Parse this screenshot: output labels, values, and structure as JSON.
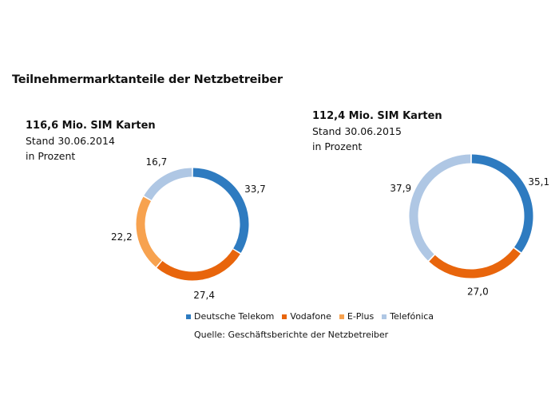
{
  "chart_data": {
    "type": "pie",
    "title": "Teilnehmermarktanteile der Netzbetreiber",
    "legend": [
      {
        "name": "Deutsche Telekom",
        "color": "#2E7BC0"
      },
      {
        "name": "Vodafone",
        "color": "#E8650C"
      },
      {
        "name": "E-Plus",
        "color": "#F7A24F"
      },
      {
        "name": "Telefónica",
        "color": "#AFC7E4"
      }
    ],
    "legend_position": "bottom",
    "source": "Quelle: Geschäftsberichte der Netzbetreiber",
    "charts": [
      {
        "heading": "116,6 Mio. SIM Karten",
        "stand": "Stand 30.06.2014",
        "unit": "in Prozent",
        "slices": [
          {
            "name": "Deutsche Telekom",
            "value": 33.7,
            "label": "33,7"
          },
          {
            "name": "Vodafone",
            "value": 27.4,
            "label": "27,4"
          },
          {
            "name": "E-Plus",
            "value": 22.2,
            "label": "22,2"
          },
          {
            "name": "Telefónica",
            "value": 16.7,
            "label": "16,7"
          }
        ]
      },
      {
        "heading": "112,4 Mio. SIM Karten",
        "stand": "Stand 30.06.2015",
        "unit": "in Prozent",
        "slices": [
          {
            "name": "Deutsche Telekom",
            "value": 35.1,
            "label": "35,1"
          },
          {
            "name": "Vodafone",
            "value": 27.0,
            "label": "27,0"
          },
          {
            "name": "Telefónica",
            "value": 37.9,
            "label": "37,9"
          }
        ]
      }
    ]
  }
}
